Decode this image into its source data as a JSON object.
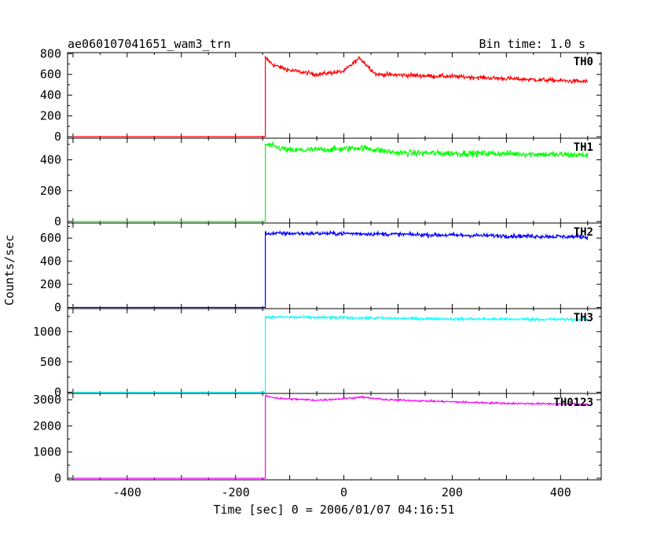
{
  "chart_data": {
    "type": "line",
    "title": "ae060107041651_wam3_trn",
    "subtitle": "Bin time: 1.0 s",
    "xlabel": "Time [sec] 0 = 2006/01/07 04:16:51",
    "ylabel": "Counts/sec",
    "xlim": [
      -510,
      475
    ],
    "x_ticks": [
      "-400",
      "-200",
      "0",
      "200",
      "400"
    ],
    "grid": false,
    "event_time": -145,
    "x_end": 450,
    "panels": [
      {
        "name": "TH0",
        "color": "#ff0000",
        "ylim": [
          -15,
          810
        ],
        "y_ticks": [
          "0",
          "200",
          "400",
          "600",
          "800"
        ],
        "y_tick_values": [
          0,
          200,
          400,
          600,
          800
        ],
        "baseline": 0,
        "profile": [
          [
            -145,
            760
          ],
          [
            -130,
            690
          ],
          [
            -100,
            640
          ],
          [
            -50,
            600
          ],
          [
            0,
            630
          ],
          [
            20,
            720
          ],
          [
            30,
            760
          ],
          [
            40,
            700
          ],
          [
            60,
            600
          ],
          [
            200,
            580
          ],
          [
            300,
            560
          ],
          [
            450,
            530
          ]
        ],
        "noise": 40
      },
      {
        "name": "TH1",
        "color": "#00ff00",
        "ylim": [
          -10,
          540
        ],
        "y_ticks": [
          "0",
          "200",
          "400"
        ],
        "y_tick_values": [
          0,
          200,
          400
        ],
        "baseline": 0,
        "profile": [
          [
            -145,
            500
          ],
          [
            -100,
            460
          ],
          [
            0,
            470
          ],
          [
            30,
            480
          ],
          [
            100,
            445
          ],
          [
            300,
            440
          ],
          [
            450,
            430
          ]
        ],
        "noise": 40
      },
      {
        "name": "TH2",
        "color": "#0000ff",
        "ylim": [
          -10,
          730
        ],
        "y_ticks": [
          "0",
          "200",
          "400",
          "600"
        ],
        "y_tick_values": [
          0,
          200,
          400,
          600
        ],
        "baseline": 0,
        "profile": [
          [
            -145,
            640
          ],
          [
            0,
            640
          ],
          [
            200,
            625
          ],
          [
            450,
            610
          ]
        ],
        "noise": 35
      },
      {
        "name": "TH3",
        "color": "#00ffff",
        "ylim": [
          -20,
          1380
        ],
        "y_ticks": [
          "0",
          "500",
          "1000"
        ],
        "y_tick_values": [
          0,
          500,
          1000
        ],
        "baseline": 0,
        "profile": [
          [
            -145,
            1240
          ],
          [
            0,
            1230
          ],
          [
            200,
            1210
          ],
          [
            450,
            1200
          ]
        ],
        "noise": 45
      },
      {
        "name": "TH0123",
        "color": "#ff00ff",
        "ylim": [
          -60,
          3240
        ],
        "y_ticks": [
          "0",
          "1000",
          "2000",
          "3000"
        ],
        "y_tick_values": [
          0,
          1000,
          2000,
          3000
        ],
        "baseline": 0,
        "profile": [
          [
            -145,
            3150
          ],
          [
            -120,
            3050
          ],
          [
            -50,
            2980
          ],
          [
            0,
            3040
          ],
          [
            30,
            3100
          ],
          [
            80,
            3000
          ],
          [
            200,
            2920
          ],
          [
            300,
            2860
          ],
          [
            450,
            2830
          ]
        ],
        "noise": 70
      }
    ]
  }
}
